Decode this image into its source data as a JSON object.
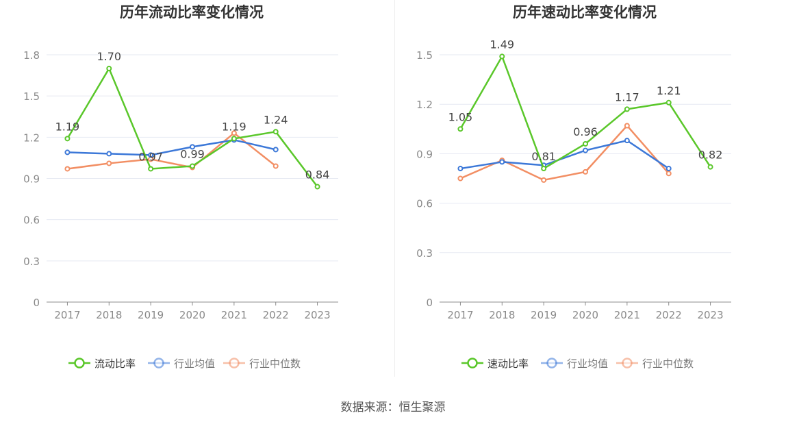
{
  "charts": [
    {
      "title": "历年流动比率变化情况",
      "chart_data": {
        "type": "line",
        "title": "历年流动比率变化情况",
        "x": [
          "2017",
          "2018",
          "2019",
          "2020",
          "2021",
          "2022",
          "2023"
        ],
        "ylim": [
          0,
          1.8
        ],
        "yticks": [
          "0",
          "0.3",
          "0.6",
          "0.9",
          "1.2",
          "1.5",
          "1.8"
        ],
        "grid": true,
        "legend_position": "bottom",
        "series": [
          {
            "name": "流动比率",
            "color": "#5ac72a",
            "values": [
              1.19,
              1.7,
              0.97,
              0.99,
              1.19,
              1.24,
              0.84
            ],
            "labels": [
              "1.19",
              "1.70",
              "0.97",
              "0.99",
              "1.19",
              "1.24",
              "0.84"
            ]
          },
          {
            "name": "行业均值",
            "color": "#3c78d8",
            "values": [
              1.09,
              1.08,
              1.07,
              1.13,
              1.18,
              1.11,
              null
            ]
          },
          {
            "name": "行业中位数",
            "color": "#f28e63",
            "values": [
              0.97,
              1.01,
              1.04,
              0.98,
              1.23,
              0.99,
              null
            ]
          }
        ]
      }
    },
    {
      "title": "历年速动比率变化情况",
      "chart_data": {
        "type": "line",
        "title": "历年速动比率变化情况",
        "x": [
          "2017",
          "2018",
          "2019",
          "2020",
          "2021",
          "2022",
          "2023"
        ],
        "ylim": [
          0,
          1.5
        ],
        "yticks": [
          "0",
          "0.3",
          "0.6",
          "0.9",
          "1.2",
          "1.5"
        ],
        "grid": true,
        "legend_position": "bottom",
        "series": [
          {
            "name": "速动比率",
            "color": "#5ac72a",
            "values": [
              1.05,
              1.49,
              0.81,
              0.96,
              1.17,
              1.21,
              0.82
            ],
            "labels": [
              "1.05",
              "1.49",
              "0.81",
              "0.96",
              "1.17",
              "1.21",
              "0.82"
            ]
          },
          {
            "name": "行业均值",
            "color": "#3c78d8",
            "values": [
              0.81,
              0.85,
              0.83,
              0.92,
              0.98,
              0.81,
              null
            ]
          },
          {
            "name": "行业中位数",
            "color": "#f28e63",
            "values": [
              0.75,
              0.86,
              0.74,
              0.79,
              1.07,
              0.78,
              null
            ]
          }
        ]
      }
    }
  ],
  "source": "数据来源：恒生聚源"
}
